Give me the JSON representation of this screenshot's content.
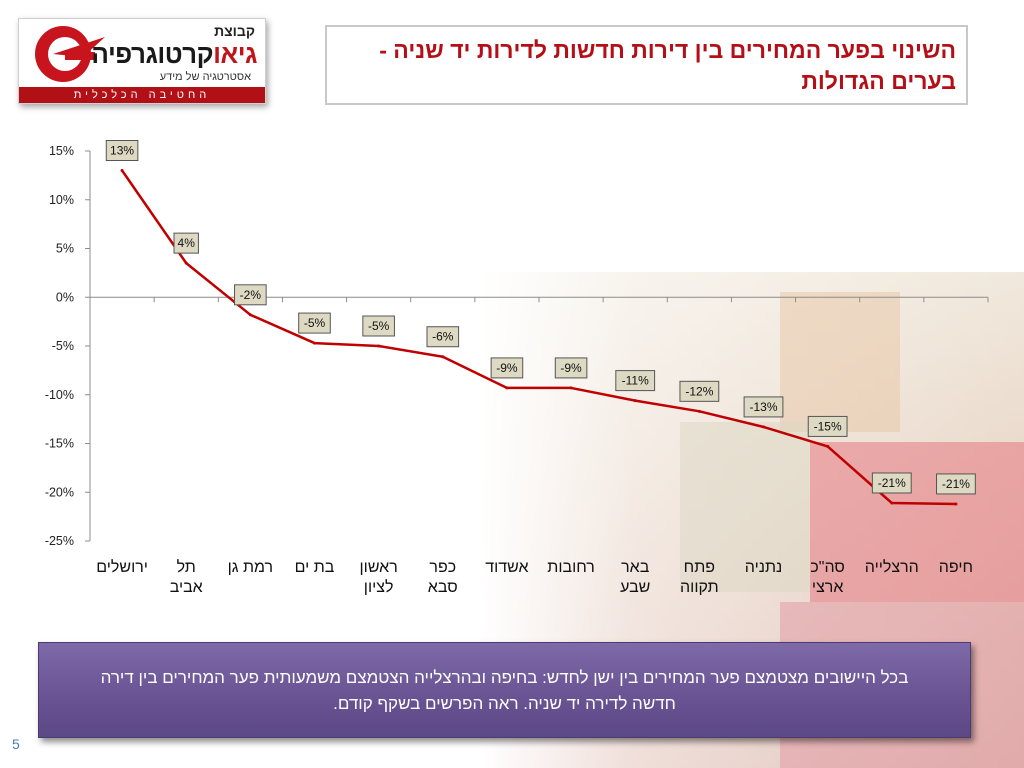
{
  "logo": {
    "brand_small": "קבוצת",
    "brand_big_red": "גיאו",
    "brand_big_black": "קרטוגרפיה",
    "tagline": "אסטרטגיה של מידע",
    "footer": "החטיבה הכלכלית"
  },
  "slide": {
    "title": "השינוי בפער המחירים בין דירות חדשות לדירות יד שניה - בערים הגדולות",
    "page_number": "5"
  },
  "note": {
    "text": "בכל היישובים מצטמצם פער המחירים בין ישן לחדש: בחיפה ובהרצלייה הצטמצם משמעותית פער המחירים בין דירה חדשה לדירה יד שניה. ראה הפרשים בשקף קודם."
  },
  "colors": {
    "line": "#c00000",
    "data_label_fill": "#ddd9c3",
    "title": "#b40f17",
    "note_box": "#6a5494"
  },
  "chart_data": {
    "type": "line",
    "categories": [
      "ירושלים",
      "תל אביב",
      "רמת גן",
      "בת ים",
      "ראשון לציון",
      "כפר סבא",
      "אשדוד",
      "רחובות",
      "באר שבע",
      "פתח תקווה",
      "נתניה",
      "סה\"כ ארצי",
      "הרצלייה",
      "חיפה"
    ],
    "category_lines": [
      [
        "ירושלים"
      ],
      [
        "תל",
        "אביב"
      ],
      [
        "רמת גן"
      ],
      [
        "בת ים"
      ],
      [
        "ראשון",
        "לציון"
      ],
      [
        "כפר",
        "סבא"
      ],
      [
        "אשדוד"
      ],
      [
        "רחובות"
      ],
      [
        "באר",
        "שבע"
      ],
      [
        "פתח",
        "תקווה"
      ],
      [
        "נתניה"
      ],
      [
        "סה\"כ",
        "ארצי"
      ],
      [
        "הרצלייה"
      ],
      [
        "חיפה"
      ]
    ],
    "values": [
      13,
      3.5,
      -1.8,
      -4.7,
      -5.0,
      -6.1,
      -9.3,
      -9.3,
      -10.6,
      -11.7,
      -13.3,
      -15.3,
      -21.1,
      -21.2
    ],
    "data_labels": [
      "13%",
      "4%",
      "-2%",
      "-5%",
      "-5%",
      "-6%",
      "-9%",
      "-9%",
      "-11%",
      "-12%",
      "-13%",
      "-15%",
      "-21%",
      "-21%"
    ],
    "y_ticks": [
      15,
      10,
      5,
      0,
      -5,
      -10,
      -15,
      -20,
      -25
    ],
    "y_tick_labels": [
      "15%",
      "10%",
      "5%",
      "0%",
      "-5%",
      "-10%",
      "-15%",
      "-20%",
      "-25%"
    ],
    "ylim": [
      -25,
      15
    ],
    "grid": false
  }
}
